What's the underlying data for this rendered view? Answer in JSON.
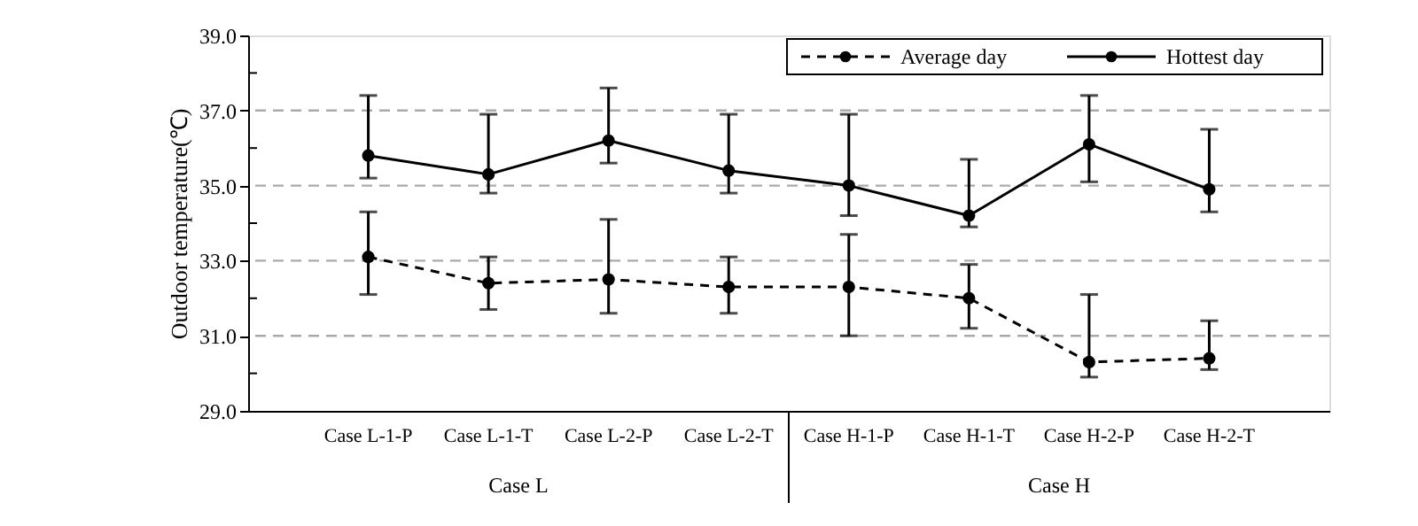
{
  "chart_data": {
    "type": "line",
    "ylabel": "Outdoor temperature(℃)",
    "categories": [
      "Case L-1-P",
      "Case L-1-T",
      "Case L-2-P",
      "Case L-2-T",
      "Case H-1-P",
      "Case H-1-T",
      "Case H-2-P",
      "Case H-2-T"
    ],
    "series": [
      {
        "name": "Average day",
        "color": "#000000",
        "line_style": "dashed",
        "values": [
          33.1,
          32.4,
          32.5,
          32.3,
          32.3,
          32.0,
          30.3,
          30.4
        ],
        "errors": [
          [
            32.1,
            34.3
          ],
          [
            31.7,
            33.1
          ],
          [
            31.6,
            34.1
          ],
          [
            31.6,
            33.1
          ],
          [
            31.0,
            33.7
          ],
          [
            31.2,
            32.9
          ],
          [
            29.9,
            32.1
          ],
          [
            30.1,
            31.4
          ]
        ]
      },
      {
        "name": "Hottest day",
        "color": "#000000",
        "line_style": "solid",
        "values": [
          35.8,
          35.3,
          36.2,
          35.4,
          35.0,
          34.2,
          36.1,
          34.9
        ],
        "errors": [
          [
            35.2,
            37.4
          ],
          [
            34.8,
            36.9
          ],
          [
            35.6,
            37.6
          ],
          [
            34.8,
            36.9
          ],
          [
            34.2,
            36.9
          ],
          [
            33.9,
            35.7
          ],
          [
            35.1,
            37.4
          ],
          [
            34.3,
            36.5
          ]
        ]
      }
    ],
    "ylim": [
      29,
      39
    ],
    "yticks": [
      {
        "value": 29,
        "label": "29.0"
      },
      {
        "value": 30,
        "label": null
      },
      {
        "value": 31,
        "label": "31.0"
      },
      {
        "value": 32,
        "label": null
      },
      {
        "value": 33,
        "label": "33.0"
      },
      {
        "value": 34,
        "label": null
      },
      {
        "value": 35,
        "label": "35.0"
      },
      {
        "value": 36,
        "label": null
      },
      {
        "value": 37,
        "label": "37.0"
      },
      {
        "value": 38,
        "label": null
      },
      {
        "value": 39,
        "label": "39.0"
      }
    ],
    "grid": "y",
    "legend": "top right",
    "marker": "circle",
    "annotations": [
      "Case L",
      "Case H"
    ]
  }
}
